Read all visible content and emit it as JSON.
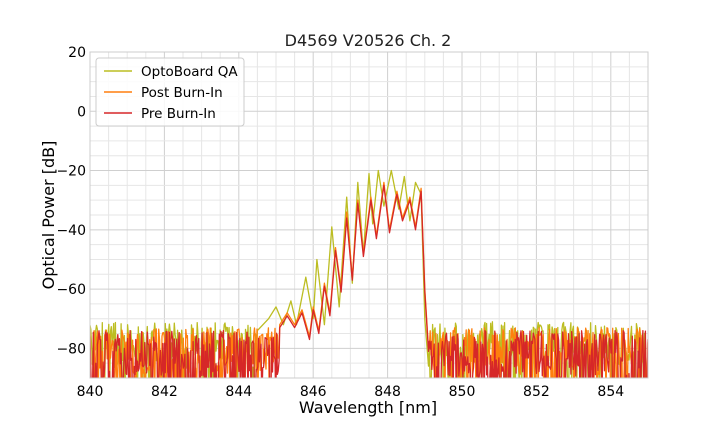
{
  "chart_data": {
    "type": "line",
    "title": "D4569 V20526 Ch. 2",
    "xlabel": "Wavelength [nm]",
    "ylabel": "Optical Power [dB]",
    "xlim": [
      840,
      855
    ],
    "ylim": [
      -90,
      20
    ],
    "xticks": [
      840,
      842,
      844,
      846,
      848,
      850,
      852,
      854
    ],
    "yticks": [
      20,
      0,
      -20,
      -40,
      -60,
      -80
    ],
    "grid": true,
    "legend_position": "top-left",
    "series": [
      {
        "name": "OptoBoard QA",
        "color": "#bcbd22",
        "noise_floor": -80,
        "points": [
          [
            844.5,
            -74
          ],
          [
            844.8,
            -70
          ],
          [
            845.0,
            -66
          ],
          [
            845.2,
            -72
          ],
          [
            845.4,
            -64
          ],
          [
            845.55,
            -72
          ],
          [
            845.8,
            -56
          ],
          [
            846.0,
            -70
          ],
          [
            846.1,
            -50
          ],
          [
            846.3,
            -72
          ],
          [
            846.5,
            -39
          ],
          [
            846.7,
            -66
          ],
          [
            846.9,
            -29
          ],
          [
            847.05,
            -58
          ],
          [
            847.2,
            -24
          ],
          [
            847.35,
            -48
          ],
          [
            847.5,
            -21
          ],
          [
            847.6,
            -38
          ],
          [
            847.75,
            -20
          ],
          [
            847.9,
            -32
          ],
          [
            848.1,
            -20
          ],
          [
            848.3,
            -33
          ],
          [
            848.45,
            -22
          ],
          [
            848.6,
            -37
          ],
          [
            848.75,
            -24
          ],
          [
            848.9,
            -28
          ],
          [
            849.0,
            -70
          ],
          [
            849.1,
            -86
          ]
        ]
      },
      {
        "name": "Post Burn-In",
        "color": "#ff7f0e",
        "noise_floor": -82,
        "points": [
          [
            845.1,
            -72
          ],
          [
            845.3,
            -68
          ],
          [
            845.5,
            -72
          ],
          [
            845.7,
            -67
          ],
          [
            845.9,
            -76
          ],
          [
            846.0,
            -66
          ],
          [
            846.15,
            -74
          ],
          [
            846.3,
            -58
          ],
          [
            846.45,
            -68
          ],
          [
            846.6,
            -46
          ],
          [
            846.75,
            -60
          ],
          [
            846.9,
            -34
          ],
          [
            847.05,
            -56
          ],
          [
            847.2,
            -30
          ],
          [
            847.35,
            -48
          ],
          [
            847.55,
            -29
          ],
          [
            847.7,
            -42
          ],
          [
            847.9,
            -24
          ],
          [
            848.05,
            -40
          ],
          [
            848.25,
            -27
          ],
          [
            848.4,
            -36
          ],
          [
            848.6,
            -29
          ],
          [
            848.75,
            -39
          ],
          [
            848.9,
            -26
          ],
          [
            849.0,
            -60
          ],
          [
            849.1,
            -80
          ]
        ]
      },
      {
        "name": "Pre Burn-In",
        "color": "#d62728",
        "noise_floor": -83,
        "points": [
          [
            845.1,
            -73
          ],
          [
            845.3,
            -69
          ],
          [
            845.5,
            -73
          ],
          [
            845.7,
            -68
          ],
          [
            845.9,
            -77
          ],
          [
            846.0,
            -67
          ],
          [
            846.15,
            -75
          ],
          [
            846.3,
            -59
          ],
          [
            846.45,
            -69
          ],
          [
            846.6,
            -47
          ],
          [
            846.75,
            -61
          ],
          [
            846.9,
            -36
          ],
          [
            847.05,
            -57
          ],
          [
            847.2,
            -31
          ],
          [
            847.35,
            -49
          ],
          [
            847.55,
            -30
          ],
          [
            847.7,
            -43
          ],
          [
            847.9,
            -25
          ],
          [
            848.05,
            -41
          ],
          [
            848.25,
            -28
          ],
          [
            848.4,
            -37
          ],
          [
            848.6,
            -30
          ],
          [
            848.75,
            -40
          ],
          [
            848.9,
            -27
          ],
          [
            849.0,
            -61
          ],
          [
            849.1,
            -81
          ]
        ]
      }
    ]
  }
}
